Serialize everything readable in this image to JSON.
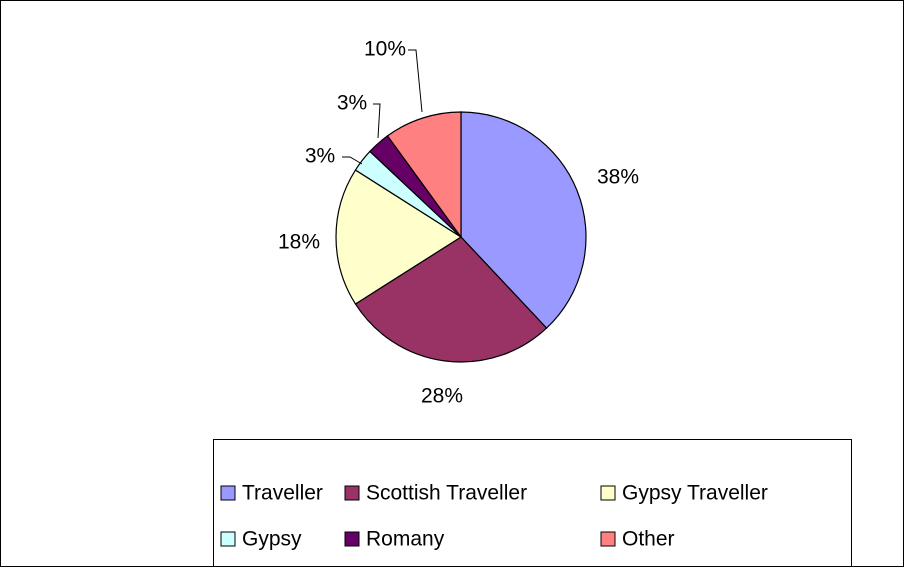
{
  "chart_data": {
    "type": "pie",
    "categories": [
      "Traveller",
      "Scottish Traveller",
      "Gypsy Traveller",
      "Gypsy",
      "Romany",
      "Other"
    ],
    "values": [
      38,
      28,
      18,
      3,
      3,
      10
    ],
    "value_labels": [
      "38%",
      "28%",
      "18%",
      "3%",
      "3%",
      "10%"
    ],
    "colors": [
      "#9999ff",
      "#993366",
      "#ffffcc",
      "#ccffff",
      "#660066",
      "#ff8080"
    ],
    "legend": "bottom"
  }
}
